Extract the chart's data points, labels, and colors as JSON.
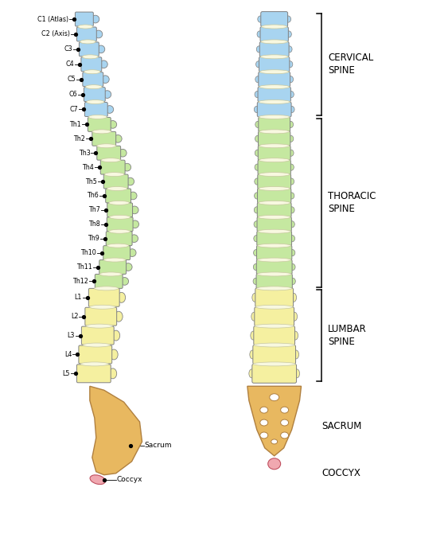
{
  "bg_color": "#ffffff",
  "cervical_color": "#a8d4f0",
  "thoracic_color": "#c5e8a0",
  "lumbar_color": "#f5f0a0",
  "sacrum_color": "#e8b860",
  "coccyx_color": "#f0a8b0",
  "disc_color": "#f8f8e0",
  "cervical_labels": [
    "C1 (Atlas)",
    "C2 (Axis)",
    "C3",
    "C4",
    "C5",
    "C6",
    "C7"
  ],
  "thoracic_labels": [
    "Th1",
    "Th2",
    "Th3",
    "Th4",
    "Th5",
    "Th6",
    "Th7",
    "Th8",
    "Th9",
    "Th10",
    "Th11",
    "Th12"
  ],
  "lumbar_labels": [
    "L1",
    "L2",
    "L3",
    "L4",
    "L5"
  ],
  "sacrum_left_label": "Sacrum",
  "coccyx_left_label": "Coccyx",
  "sacrum_right_label": "SACRUM",
  "coccyx_right_label": "COCCYX",
  "cervical_section": "CERVICAL\nSPINE",
  "thoracic_section": "THORACIC\nSPINE",
  "lumbar_section": "LUMBAR\nSPINE"
}
